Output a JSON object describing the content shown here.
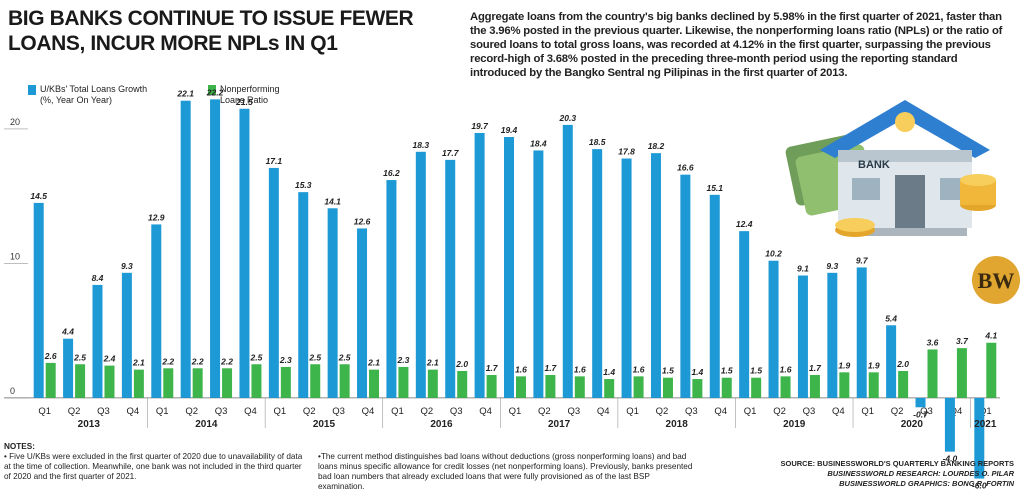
{
  "chart_data": {
    "type": "bar",
    "title": [
      "BIG BANKS CONTINUE TO ISSUE FEWER",
      "LOANS, INCUR MORE NPLs IN Q1"
    ],
    "description": "Aggregate loans from the country's big banks declined by 5.98% in the first quarter of 2021, faster than the 3.96% posted in the previous quarter. Likewise, the nonperforming loans ratio (NPLs) or the ratio of soured loans to total gross loans, was recorded at 4.12% in the first quarter, surpassing the previous record-high of 3.68% posted in the preceding three-month period using the reporting standard introduced by the Bangko Sentral ng Pilipinas in the first quarter of 2013.",
    "categories": [
      "Q1",
      "Q2",
      "Q3",
      "Q4",
      "Q1",
      "Q2",
      "Q3",
      "Q4",
      "Q1",
      "Q2",
      "Q3",
      "Q4",
      "Q1",
      "Q2",
      "Q3",
      "Q4",
      "Q1",
      "Q2",
      "Q3",
      "Q4",
      "Q1",
      "Q2",
      "Q3",
      "Q4",
      "Q1",
      "Q2",
      "Q3",
      "Q4",
      "Q1",
      "Q2",
      "Q3",
      "Q4",
      "Q1"
    ],
    "years": [
      "2013",
      "2014",
      "2015",
      "2016",
      "2017",
      "2018",
      "2019",
      "2020",
      "2021"
    ],
    "series": [
      {
        "name": "U/KBs' Total Loans Growth",
        "note": "(%, Year On Year)",
        "color": "#1d9ad6",
        "values": [
          14.5,
          4.4,
          8.4,
          9.3,
          12.9,
          22.1,
          22.2,
          21.5,
          17.1,
          15.3,
          14.1,
          12.6,
          16.2,
          18.3,
          17.7,
          19.7,
          19.4,
          18.4,
          20.3,
          18.5,
          17.8,
          18.2,
          16.6,
          15.1,
          12.4,
          10.2,
          9.1,
          9.3,
          9.7,
          5.4,
          -0.7,
          -4.0,
          -6.0
        ],
        "value_labels": [
          "14.5",
          "4.4",
          "8.4",
          "9.3",
          "12.9",
          "22.1",
          "22.2",
          "21.5",
          "17.1",
          "15.3",
          "14.1",
          "12.6",
          "16.2",
          "18.3",
          "17.7",
          "19.7",
          "19.4",
          "18.4",
          "20.3",
          "18.5",
          "17.8",
          "18.2",
          "16.6",
          "15.1",
          "12.4",
          "10.2",
          "9.1",
          "9.3",
          "9.7",
          "5.4",
          "-0.7",
          "-4.0",
          "-6.0"
        ]
      },
      {
        "name": "Nonperforming Loans Ratio",
        "color": "#3db54a",
        "values": [
          2.6,
          2.5,
          2.4,
          2.1,
          2.2,
          2.2,
          2.2,
          2.5,
          2.3,
          2.5,
          2.5,
          2.1,
          2.3,
          2.1,
          2.0,
          1.7,
          1.6,
          1.7,
          1.6,
          1.4,
          1.6,
          1.5,
          1.4,
          1.5,
          1.5,
          1.6,
          1.7,
          1.9,
          1.9,
          2.0,
          3.6,
          3.7,
          4.1
        ],
        "value_labels": [
          "2.6",
          "2.5",
          "2.4",
          "2.1",
          "2.2",
          "2.2",
          "2.2",
          "2.5",
          "2.3",
          "2.5",
          "2.5",
          "2.1",
          "2.3",
          "2.1",
          "2.0",
          "1.7",
          "1.6",
          "1.7",
          "1.6",
          "1.4",
          "1.6",
          "1.5",
          "1.4",
          "1.5",
          "1.5",
          "1.6",
          "1.7",
          "1.9",
          "1.9",
          "2.0",
          "3.6",
          "3.7",
          "4.1"
        ]
      }
    ],
    "ylim": [
      -7,
      23
    ],
    "yticks": [
      0,
      10,
      20
    ],
    "notes_title": "NOTES:",
    "notes": [
      "Five U/KBs were excluded in the first quarter of 2020 due to unavailability of data at the time of collection. Meanwhile, one bank was not included in the third quarter of 2020 and the first quarter of 2021.",
      "The current method distinguishes bad loans without deductions (gross nonperforming loans) and bad loans minus specific allowance for credit losses (net nonperforming loans). Previously, banks presented bad loan numbers that already excluded loans that were fully provisioned as of the last BSP examination."
    ],
    "sources": [
      "SOURCE: BUSINESSWORLD'S QUARTERLY BANKING REPORTS",
      "BUSINESSWORLD RESEARCH: LOURDES O. PILAR",
      "BUSINESSWORLD GRAPHICS: BONG R. FORTIN"
    ],
    "logo": "BW",
    "bank_sign": "BANK"
  }
}
